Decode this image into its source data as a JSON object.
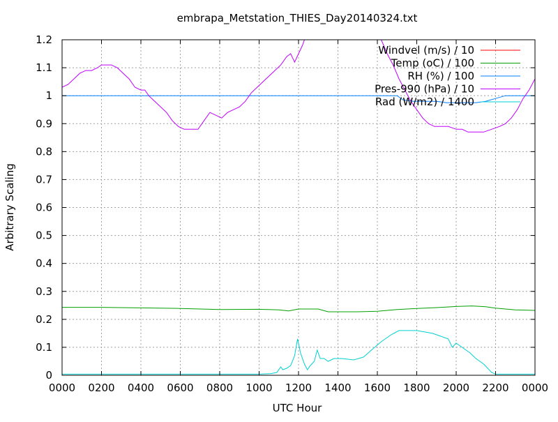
{
  "chart_data": {
    "type": "line",
    "title": "embrapa_Metstation_THIES_Day20140324.txt",
    "xlabel": "UTC Hour",
    "ylabel": "Arbitrary Scaling",
    "xlim": [
      0,
      24
    ],
    "ylim": [
      0,
      1.2
    ],
    "grid": true,
    "legend_position": "top-right",
    "x_ticks": [
      {
        "value": 0,
        "label": "0000"
      },
      {
        "value": 2,
        "label": "0200"
      },
      {
        "value": 4,
        "label": "0400"
      },
      {
        "value": 6,
        "label": "0600"
      },
      {
        "value": 8,
        "label": "0800"
      },
      {
        "value": 10,
        "label": "1000"
      },
      {
        "value": 12,
        "label": "1200"
      },
      {
        "value": 14,
        "label": "1400"
      },
      {
        "value": 16,
        "label": "1600"
      },
      {
        "value": 18,
        "label": "1800"
      },
      {
        "value": 20,
        "label": "2000"
      },
      {
        "value": 22,
        "label": "2200"
      },
      {
        "value": 24,
        "label": "0000"
      }
    ],
    "y_ticks": [
      {
        "value": 0,
        "label": "0"
      },
      {
        "value": 0.1,
        "label": "0.1"
      },
      {
        "value": 0.2,
        "label": "0.2"
      },
      {
        "value": 0.3,
        "label": "0.3"
      },
      {
        "value": 0.4,
        "label": "0.4"
      },
      {
        "value": 0.5,
        "label": "0.5"
      },
      {
        "value": 0.6,
        "label": "0.6"
      },
      {
        "value": 0.7,
        "label": "0.7"
      },
      {
        "value": 0.8,
        "label": "0.8"
      },
      {
        "value": 0.9,
        "label": "0.9"
      },
      {
        "value": 1.0,
        "label": "1"
      },
      {
        "value": 1.1,
        "label": "1.1"
      },
      {
        "value": 1.2,
        "label": "1.2"
      }
    ],
    "series": [
      {
        "name": "Windvel (m/s) / 10",
        "color": "#ff0000",
        "points": []
      },
      {
        "name": "Temp (oC) / 100",
        "color": "#00a000",
        "points": [
          [
            0,
            0.243
          ],
          [
            2,
            0.243
          ],
          [
            4,
            0.241
          ],
          [
            6,
            0.239
          ],
          [
            8,
            0.235
          ],
          [
            10,
            0.236
          ],
          [
            11,
            0.234
          ],
          [
            11.5,
            0.23
          ],
          [
            12,
            0.237
          ],
          [
            13,
            0.237
          ],
          [
            13.5,
            0.227
          ],
          [
            15,
            0.227
          ],
          [
            16,
            0.229
          ],
          [
            17,
            0.235
          ],
          [
            18,
            0.239
          ],
          [
            19,
            0.242
          ],
          [
            20,
            0.246
          ],
          [
            20.8,
            0.248
          ],
          [
            21.5,
            0.245
          ],
          [
            22,
            0.24
          ],
          [
            23,
            0.234
          ],
          [
            24,
            0.232
          ]
        ]
      },
      {
        "name": "RH (%) / 100",
        "color": "#0080ff",
        "points": [
          [
            0,
            1.0
          ],
          [
            17,
            1.0
          ],
          [
            17.3,
            0.985
          ],
          [
            17.8,
            0.98
          ],
          [
            18.5,
            0.98
          ],
          [
            19,
            0.98
          ],
          [
            19.5,
            0.975
          ],
          [
            20,
            0.975
          ],
          [
            20.5,
            0.975
          ],
          [
            21,
            0.975
          ],
          [
            21.5,
            0.98
          ],
          [
            22,
            0.99
          ],
          [
            22.5,
            1.0
          ],
          [
            24,
            1.0
          ]
        ]
      },
      {
        "name": "Pres-990 (hPa) / 10",
        "color": "#c000ff",
        "points": [
          [
            0,
            1.03
          ],
          [
            0.3,
            1.04
          ],
          [
            0.6,
            1.06
          ],
          [
            0.9,
            1.08
          ],
          [
            1.2,
            1.09
          ],
          [
            1.5,
            1.09
          ],
          [
            1.8,
            1.1
          ],
          [
            2.0,
            1.11
          ],
          [
            2.2,
            1.11
          ],
          [
            2.5,
            1.11
          ],
          [
            2.8,
            1.1
          ],
          [
            3.1,
            1.08
          ],
          [
            3.4,
            1.06
          ],
          [
            3.7,
            1.03
          ],
          [
            4.0,
            1.02
          ],
          [
            4.2,
            1.02
          ],
          [
            4.4,
            1.0
          ],
          [
            4.7,
            0.98
          ],
          [
            5.0,
            0.96
          ],
          [
            5.3,
            0.94
          ],
          [
            5.6,
            0.91
          ],
          [
            5.9,
            0.89
          ],
          [
            6.2,
            0.88
          ],
          [
            6.6,
            0.88
          ],
          [
            6.9,
            0.88
          ],
          [
            7.2,
            0.91
          ],
          [
            7.5,
            0.94
          ],
          [
            7.8,
            0.93
          ],
          [
            8.1,
            0.92
          ],
          [
            8.4,
            0.94
          ],
          [
            8.7,
            0.95
          ],
          [
            9.0,
            0.96
          ],
          [
            9.3,
            0.98
          ],
          [
            9.6,
            1.01
          ],
          [
            9.9,
            1.03
          ],
          [
            10.2,
            1.05
          ],
          [
            10.5,
            1.07
          ],
          [
            10.8,
            1.09
          ],
          [
            11.1,
            1.11
          ],
          [
            11.4,
            1.14
          ],
          [
            11.6,
            1.15
          ],
          [
            11.8,
            1.12
          ],
          [
            12.0,
            1.15
          ],
          [
            12.2,
            1.18
          ],
          [
            12.3,
            1.2
          ]
        ]
      },
      {
        "name": "Pres-990 (hPa) / 10",
        "color": "#c000ff",
        "points": [
          [
            16.2,
            1.2
          ],
          [
            16.5,
            1.15
          ],
          [
            16.8,
            1.11
          ],
          [
            17.1,
            1.06
          ],
          [
            17.4,
            1.02
          ],
          [
            17.7,
            0.98
          ],
          [
            18.0,
            0.95
          ],
          [
            18.3,
            0.92
          ],
          [
            18.6,
            0.9
          ],
          [
            18.9,
            0.89
          ],
          [
            19.3,
            0.89
          ],
          [
            19.6,
            0.89
          ],
          [
            20.0,
            0.88
          ],
          [
            20.3,
            0.88
          ],
          [
            20.6,
            0.87
          ],
          [
            21.0,
            0.87
          ],
          [
            21.4,
            0.87
          ],
          [
            21.8,
            0.88
          ],
          [
            22.2,
            0.89
          ],
          [
            22.5,
            0.9
          ],
          [
            22.8,
            0.92
          ],
          [
            23.1,
            0.95
          ],
          [
            23.4,
            0.99
          ],
          [
            23.7,
            1.02
          ],
          [
            24.0,
            1.06
          ]
        ]
      },
      {
        "name": "Rad (W/m2) / 1400",
        "color": "#00d0d0",
        "points": [
          [
            0,
            0.004
          ],
          [
            10,
            0.004
          ],
          [
            10.6,
            0.006
          ],
          [
            10.9,
            0.01
          ],
          [
            11.1,
            0.03
          ],
          [
            11.2,
            0.02
          ],
          [
            11.4,
            0.025
          ],
          [
            11.6,
            0.035
          ],
          [
            11.8,
            0.07
          ],
          [
            11.95,
            0.13
          ],
          [
            12.1,
            0.08
          ],
          [
            12.3,
            0.04
          ],
          [
            12.45,
            0.02
          ],
          [
            12.6,
            0.035
          ],
          [
            12.8,
            0.05
          ],
          [
            12.95,
            0.09
          ],
          [
            13.1,
            0.06
          ],
          [
            13.3,
            0.06
          ],
          [
            13.5,
            0.05
          ],
          [
            13.8,
            0.06
          ],
          [
            14.2,
            0.06
          ],
          [
            14.8,
            0.055
          ],
          [
            15.3,
            0.065
          ],
          [
            15.7,
            0.09
          ],
          [
            16.2,
            0.12
          ],
          [
            16.7,
            0.145
          ],
          [
            17.1,
            0.16
          ],
          [
            17.6,
            0.16
          ],
          [
            18.0,
            0.16
          ],
          [
            18.4,
            0.155
          ],
          [
            18.8,
            0.15
          ],
          [
            19.2,
            0.14
          ],
          [
            19.6,
            0.13
          ],
          [
            19.8,
            0.1
          ],
          [
            20.0,
            0.115
          ],
          [
            20.3,
            0.1
          ],
          [
            20.7,
            0.08
          ],
          [
            21.0,
            0.06
          ],
          [
            21.4,
            0.04
          ],
          [
            21.8,
            0.01
          ],
          [
            22.0,
            0.004
          ],
          [
            24.0,
            0.004
          ]
        ]
      }
    ]
  }
}
